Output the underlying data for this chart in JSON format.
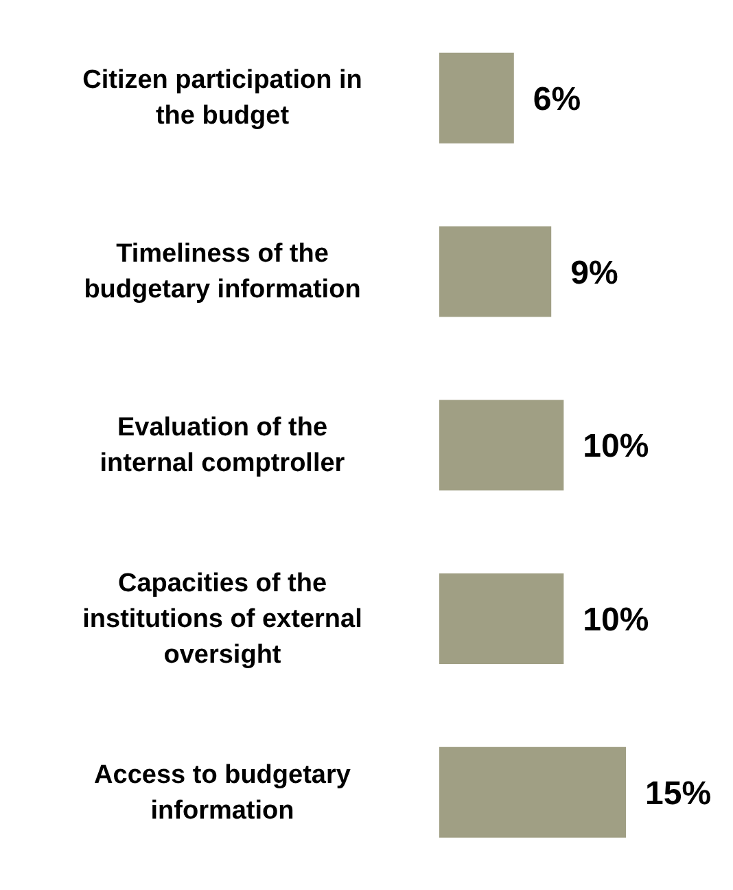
{
  "chart_data": {
    "type": "bar",
    "orientation": "horizontal",
    "categories": [
      "Citizen participation in the budget",
      "Timeliness of the budgetary information",
      "Evaluation of the internal comptroller",
      "Capacities of the institutions of external oversight",
      "Access to budgetary information"
    ],
    "values": [
      6,
      9,
      10,
      10,
      15
    ],
    "value_labels": [
      "6%",
      "9%",
      "10%",
      "10%",
      "15%"
    ],
    "color": "#a09f84"
  }
}
